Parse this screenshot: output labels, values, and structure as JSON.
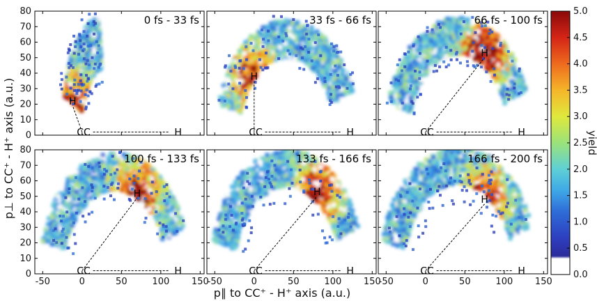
{
  "chart_data": {
    "type": "heatmap",
    "xlabel": "p∥ to CC⁺ - H⁺ axis (a.u.)",
    "ylabel": "p⊥ to CC⁺ - H⁺ axis (a.u.)",
    "xlim": [
      -60,
      155
    ],
    "ylim": [
      0,
      80
    ],
    "xticks": [
      -50,
      0,
      50,
      100,
      150
    ],
    "yticks": [
      0,
      10,
      20,
      30,
      40,
      50,
      60,
      70,
      80
    ],
    "colorbar": {
      "label": "yield",
      "min": 0.0,
      "max": 5.0,
      "ticks": [
        "0.0",
        "0.5",
        "1.0",
        "1.5",
        "2.0",
        "2.5",
        "3.0",
        "3.5",
        "4.0",
        "4.5",
        "5.0"
      ],
      "colormap": "jet (white below 0.3)"
    },
    "reference_line": {
      "label_start": "CC",
      "label_end": "H",
      "x": [
        0,
        120
      ],
      "y": [
        2,
        2
      ]
    },
    "panels": [
      {
        "title": "0 fs - 33 fs",
        "h_label": "H",
        "h_pos": [
          -12,
          22
        ],
        "peak": 3.8
      },
      {
        "title": "33 fs - 66 fs",
        "h_label": "H",
        "h_pos": [
          0,
          38
        ],
        "peak": 4.0
      },
      {
        "title": "66 fs - 100 fs",
        "h_label": "H",
        "h_pos": [
          75,
          53
        ],
        "peak": 4.8
      },
      {
        "title": "100 fs - 133 fs",
        "h_label": "H",
        "h_pos": [
          70,
          52
        ],
        "peak": 4.5
      },
      {
        "title": "133 fs - 166 fs",
        "h_label": "H",
        "h_pos": [
          80,
          53
        ],
        "peak": 4.5
      },
      {
        "title": "166 fs - 200 fs",
        "h_label": "H",
        "h_pos": [
          75,
          48
        ],
        "peak": 4.8
      }
    ]
  }
}
